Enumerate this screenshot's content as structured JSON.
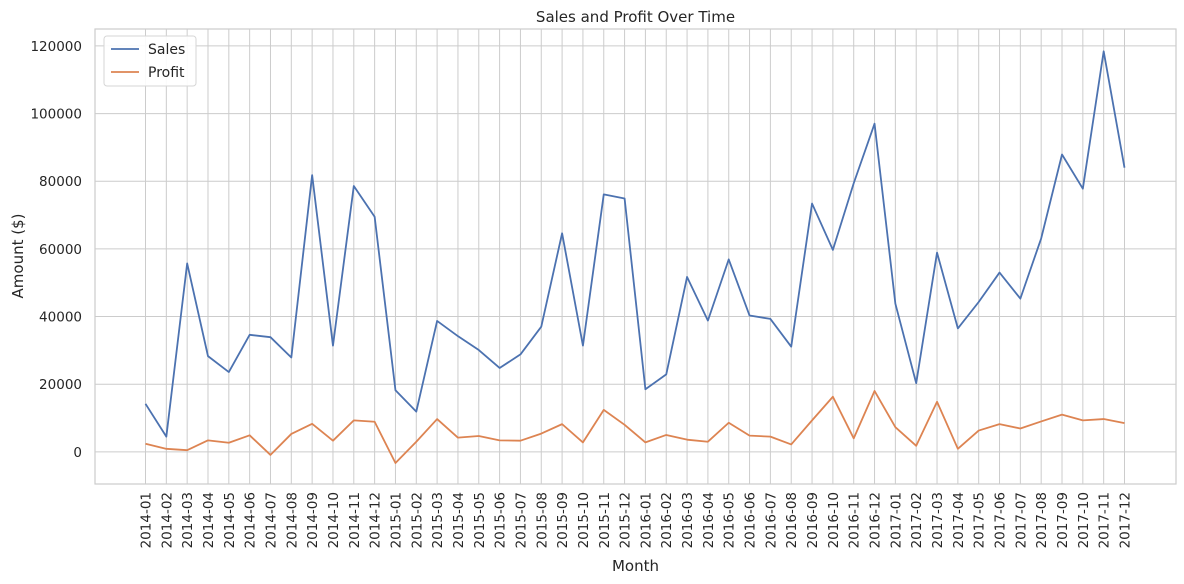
{
  "chart_data": {
    "type": "line",
    "title": "Sales and Profit Over Time",
    "xlabel": "Month",
    "ylabel": "Amount ($)",
    "ylim": [
      -9500,
      125000
    ],
    "yticks": [
      0,
      20000,
      40000,
      60000,
      80000,
      100000,
      120000
    ],
    "ytick_labels": [
      "0",
      "20000",
      "40000",
      "60000",
      "80000",
      "100000",
      "120000"
    ],
    "grid": true,
    "legend_position": "top-left",
    "categories": [
      "2014-01",
      "2014-02",
      "2014-03",
      "2014-04",
      "2014-05",
      "2014-06",
      "2014-07",
      "2014-08",
      "2014-09",
      "2014-10",
      "2014-11",
      "2014-12",
      "2015-01",
      "2015-02",
      "2015-03",
      "2015-04",
      "2015-05",
      "2015-06",
      "2015-07",
      "2015-08",
      "2015-09",
      "2015-10",
      "2015-11",
      "2015-12",
      "2016-01",
      "2016-02",
      "2016-03",
      "2016-04",
      "2016-05",
      "2016-06",
      "2016-07",
      "2016-08",
      "2016-09",
      "2016-10",
      "2016-11",
      "2016-12",
      "2017-01",
      "2017-02",
      "2017-03",
      "2017-04",
      "2017-05",
      "2017-06",
      "2017-07",
      "2017-08",
      "2017-09",
      "2017-10",
      "2017-11",
      "2017-12"
    ],
    "series": [
      {
        "name": "Sales",
        "color": "#4c72b0",
        "values": [
          14200,
          4500,
          55700,
          28300,
          23600,
          34600,
          33900,
          27900,
          81800,
          31400,
          78600,
          69500,
          18200,
          11900,
          38700,
          34200,
          30100,
          24800,
          28800,
          37000,
          64600,
          31400,
          76100,
          74900,
          18500,
          22900,
          51700,
          38800,
          56900,
          40300,
          39300,
          31100,
          73400,
          59700,
          79400,
          97000,
          43800,
          20300,
          58900,
          36500,
          44300,
          53000,
          45300,
          63100,
          87900,
          77800,
          118400,
          84000
        ]
      },
      {
        "name": "Profit",
        "color": "#dd8452",
        "values": [
          2400,
          900,
          500,
          3400,
          2700,
          4900,
          -900,
          5300,
          8300,
          3300,
          9300,
          8900,
          -3300,
          3000,
          9700,
          4200,
          4700,
          3400,
          3300,
          5400,
          8200,
          2800,
          12400,
          8000,
          2800,
          5000,
          3600,
          3000,
          8600,
          4800,
          4500,
          2200,
          9300,
          16300,
          4000,
          18000,
          7300,
          1800,
          14800,
          900,
          6300,
          8200,
          6900,
          9000,
          11000,
          9300,
          9700,
          8500
        ]
      }
    ]
  }
}
